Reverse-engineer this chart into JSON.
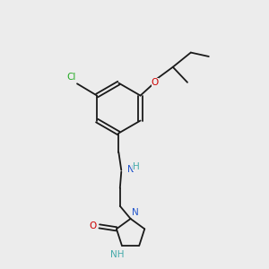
{
  "background_color": "#ececec",
  "bond_color": "#1a1a1a",
  "heteroatom_colors": {
    "O": "#cc0000",
    "N": "#2255cc",
    "Cl": "#22aa22",
    "NH": "#44aaaa"
  },
  "figsize": [
    3.0,
    3.0
  ],
  "dpi": 100
}
